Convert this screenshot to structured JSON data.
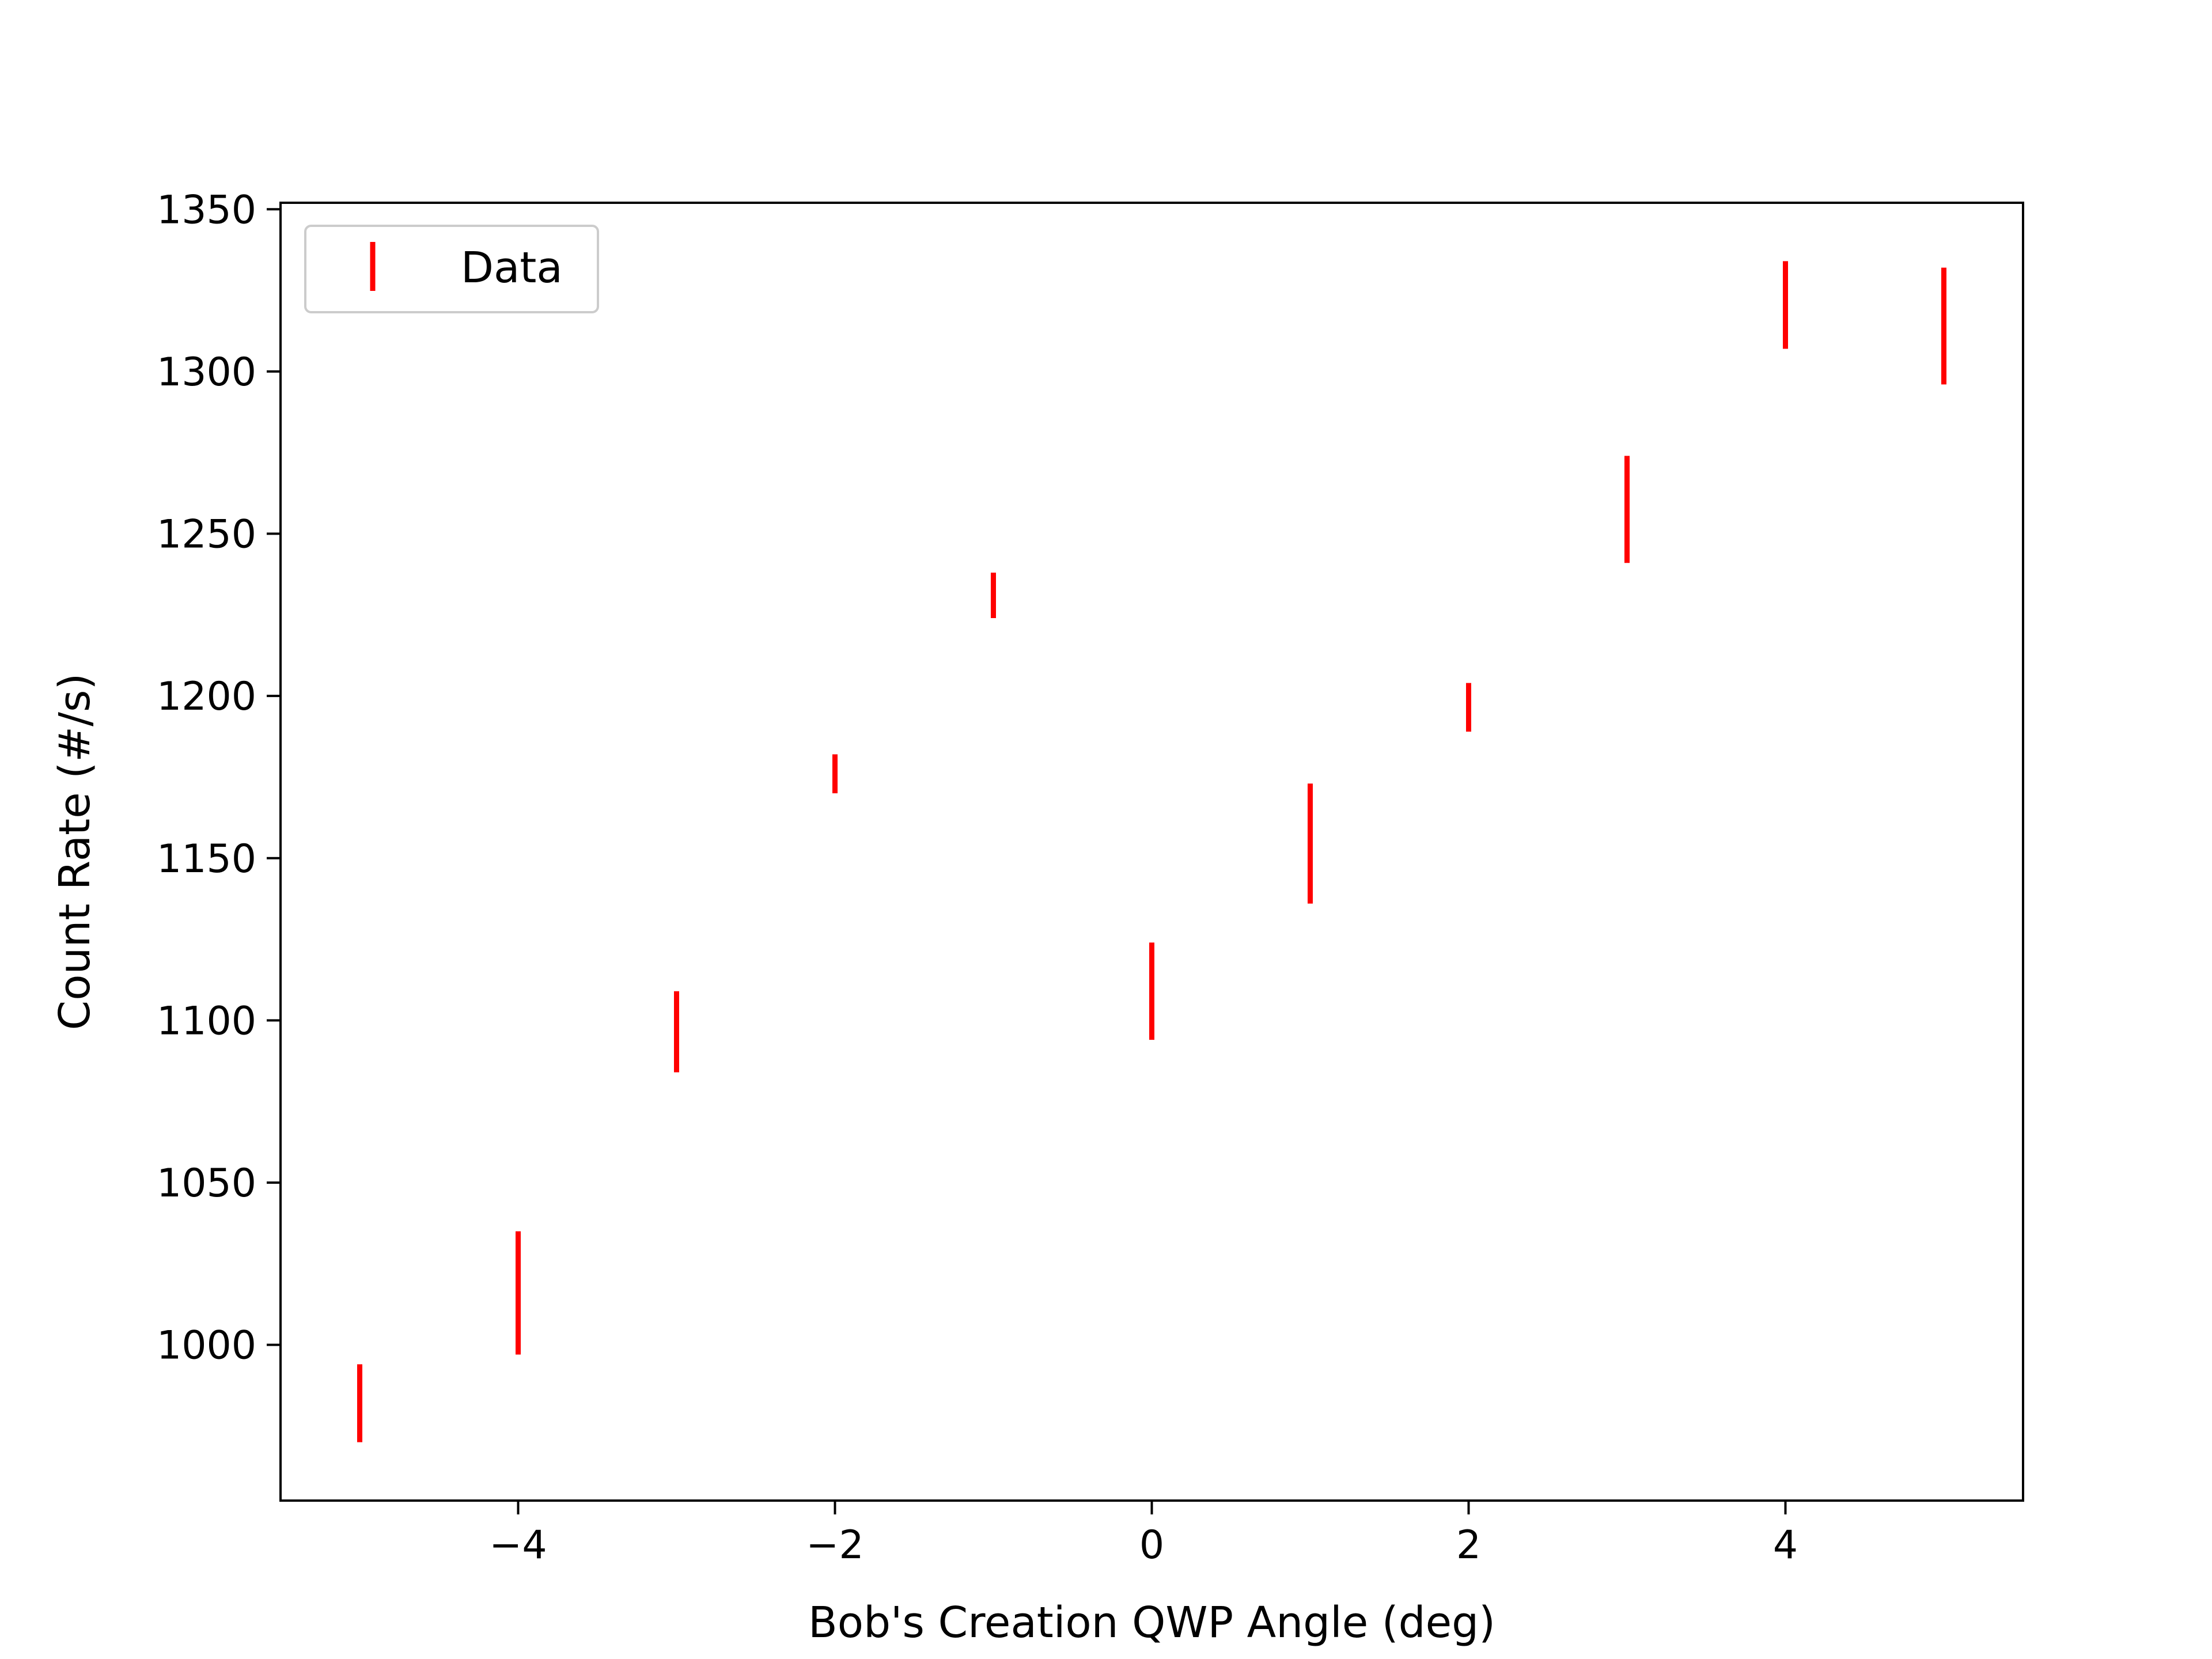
{
  "chart_data": {
    "type": "scatter",
    "xlabel": "Bob's Creation QWP Angle (deg)",
    "ylabel": "Count Rate (#/s)",
    "xlim": [
      -5.5,
      5.5
    ],
    "ylim": [
      952,
      1352
    ],
    "xticks": [
      -4,
      -2,
      0,
      2,
      4
    ],
    "xtick_labels": [
      "−4",
      "−2",
      "0",
      "2",
      "4"
    ],
    "yticks": [
      1000,
      1050,
      1100,
      1150,
      1200,
      1250,
      1300,
      1350
    ],
    "ytick_labels": [
      "1000",
      "1050",
      "1100",
      "1150",
      "1200",
      "1250",
      "1300",
      "1350"
    ],
    "grid": false,
    "legend_position": "top-left",
    "series": [
      {
        "name": "Data",
        "color": "#ff0000",
        "marker": "errorbar",
        "points": [
          {
            "x": -5,
            "low": 970,
            "high": 994
          },
          {
            "x": -4,
            "low": 997,
            "high": 1035
          },
          {
            "x": -3,
            "low": 1084,
            "high": 1109
          },
          {
            "x": -2,
            "low": 1170,
            "high": 1182
          },
          {
            "x": -1,
            "low": 1224,
            "high": 1238
          },
          {
            "x": 0,
            "low": 1094,
            "high": 1124
          },
          {
            "x": 1,
            "low": 1136,
            "high": 1173
          },
          {
            "x": 2,
            "low": 1189,
            "high": 1204
          },
          {
            "x": 3,
            "low": 1241,
            "high": 1274
          },
          {
            "x": 4,
            "low": 1307,
            "high": 1334
          },
          {
            "x": 5,
            "low": 1296,
            "high": 1332
          }
        ]
      }
    ]
  }
}
